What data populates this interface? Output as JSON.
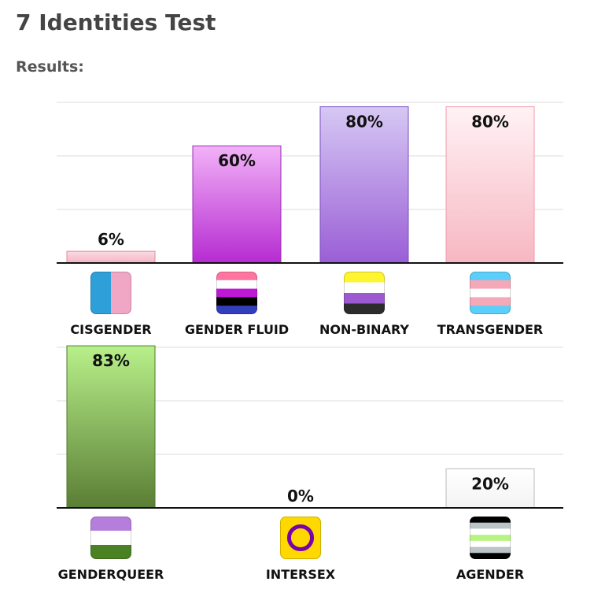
{
  "page": {
    "title": "7 Identities Test",
    "results_label": "Results:"
  },
  "chart_data": [
    {
      "type": "bar",
      "categories": [
        "CISGENDER",
        "GENDER FLUID",
        "NON-BINARY",
        "TRANSGENDER"
      ],
      "values": [
        6,
        60,
        80,
        80
      ],
      "value_labels": [
        "6%",
        "60%",
        "80%",
        "80%"
      ],
      "ylim": [
        0,
        100
      ],
      "grid": true,
      "icons": [
        "cisgender-flag-icon",
        "gender-fluid-flag-icon",
        "non-binary-flag-icon",
        "transgender-flag-icon"
      ],
      "colors": [
        [
          "#f9dce4",
          "#f6b3c2"
        ],
        [
          "#f2b2f7",
          "#b62bd2"
        ],
        [
          "#d6c8f4",
          "#9a5ed6"
        ],
        [
          "#fff2f5",
          "#f7b7c1"
        ]
      ],
      "borders": [
        "#e48aa6",
        "#9a2fb5",
        "#7a4fbe",
        "#f09aac"
      ]
    },
    {
      "type": "bar",
      "categories": [
        "GENDERQUEER",
        "INTERSEX",
        "AGENDER"
      ],
      "values": [
        83,
        0,
        20
      ],
      "value_labels": [
        "83%",
        "0%",
        "20%"
      ],
      "ylim": [
        0,
        100
      ],
      "grid": true,
      "icons": [
        "genderqueer-flag-icon",
        "intersex-symbol-icon",
        "agender-flag-icon"
      ],
      "colors": [
        [
          "#b8f08a",
          "#5a7e35"
        ],
        [
          "#f5d94a",
          "#e4b800"
        ],
        [
          "#ffffff",
          "#f3f3f3"
        ]
      ],
      "borders": [
        "#4e7a2a",
        "#c9a000",
        "#bbbbbb"
      ]
    }
  ]
}
